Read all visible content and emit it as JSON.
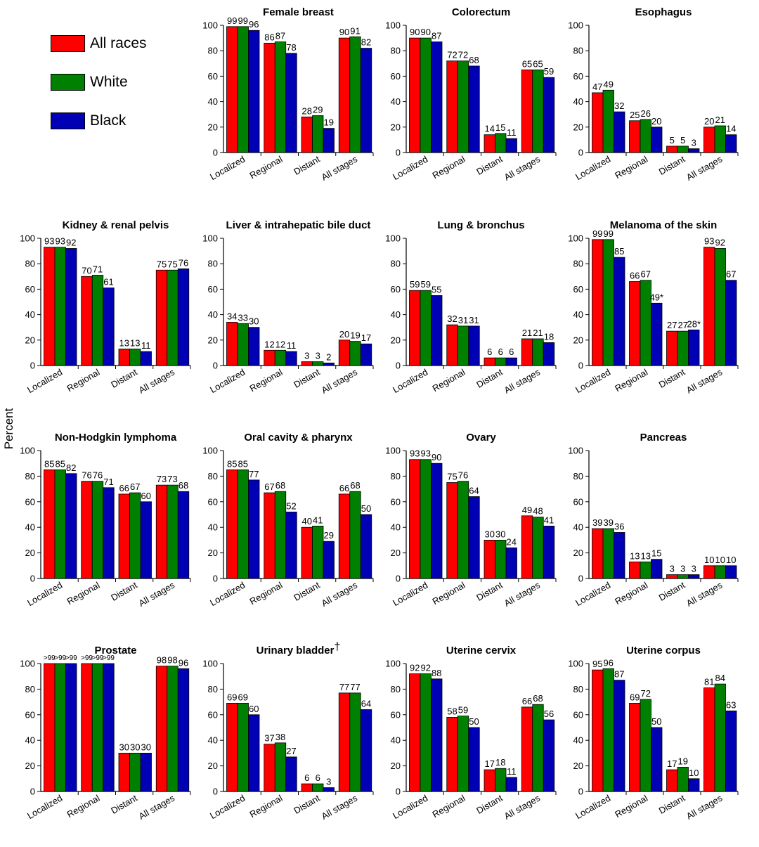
{
  "colors": {
    "all_races": "#ff0000",
    "white": "#008000",
    "black": "#0000b4"
  },
  "legend": {
    "all_races": "All races",
    "white": "White",
    "black": "Black"
  },
  "ylabel": "Percent",
  "chart_data": [
    {
      "type": "bar",
      "title": "Female breast",
      "categories": [
        "Localized",
        "Regional",
        "Distant",
        "All stages"
      ],
      "ylim": [
        0,
        100
      ],
      "yticks": [
        "0",
        "20",
        "40",
        "60",
        "80",
        "100"
      ],
      "series": [
        {
          "name": "All races",
          "values": [
            99,
            86,
            28,
            90
          ],
          "labels": [
            "99",
            "86",
            "28",
            "90"
          ]
        },
        {
          "name": "White",
          "values": [
            99,
            87,
            29,
            91
          ],
          "labels": [
            "99",
            "87",
            "29",
            "91"
          ]
        },
        {
          "name": "Black",
          "values": [
            96,
            78,
            19,
            82
          ],
          "labels": [
            "96",
            "78",
            "19",
            "82"
          ]
        }
      ]
    },
    {
      "type": "bar",
      "title": "Colorectum",
      "categories": [
        "Localized",
        "Regional",
        "Distant",
        "All stages"
      ],
      "ylim": [
        0,
        100
      ],
      "yticks": [
        "0",
        "20",
        "40",
        "60",
        "80",
        "100"
      ],
      "series": [
        {
          "name": "All races",
          "values": [
            90,
            72,
            14,
            65
          ],
          "labels": [
            "90",
            "72",
            "14",
            "65"
          ]
        },
        {
          "name": "White",
          "values": [
            90,
            72,
            15,
            65
          ],
          "labels": [
            "90",
            "72",
            "15",
            "65"
          ]
        },
        {
          "name": "Black",
          "values": [
            87,
            68,
            11,
            59
          ],
          "labels": [
            "87",
            "68",
            "11",
            "59"
          ]
        }
      ]
    },
    {
      "type": "bar",
      "title": "Esophagus",
      "categories": [
        "Localized",
        "Regional",
        "Distant",
        "All stages"
      ],
      "ylim": [
        0,
        100
      ],
      "yticks": [
        "0",
        "20",
        "40",
        "60",
        "80",
        "100"
      ],
      "series": [
        {
          "name": "All races",
          "values": [
            47,
            25,
            5,
            20
          ],
          "labels": [
            "47",
            "25",
            "5",
            "20"
          ]
        },
        {
          "name": "White",
          "values": [
            49,
            26,
            5,
            21
          ],
          "labels": [
            "49",
            "26",
            "5",
            "21"
          ]
        },
        {
          "name": "Black",
          "values": [
            32,
            20,
            3,
            14
          ],
          "labels": [
            "32",
            "20",
            "3",
            "14"
          ]
        }
      ]
    },
    {
      "type": "bar",
      "title": "Kidney & renal pelvis",
      "categories": [
        "Localized",
        "Regional",
        "Distant",
        "All stages"
      ],
      "ylim": [
        0,
        100
      ],
      "yticks": [
        "0",
        "20",
        "40",
        "60",
        "80",
        "100"
      ],
      "series": [
        {
          "name": "All races",
          "values": [
            93,
            70,
            13,
            75
          ],
          "labels": [
            "93",
            "70",
            "13",
            "75"
          ]
        },
        {
          "name": "White",
          "values": [
            93,
            71,
            13,
            75
          ],
          "labels": [
            "93",
            "71",
            "13",
            "75"
          ]
        },
        {
          "name": "Black",
          "values": [
            92,
            61,
            11,
            76
          ],
          "labels": [
            "92",
            "61",
            "11",
            "76"
          ]
        }
      ]
    },
    {
      "type": "bar",
      "title": "Liver & intrahepatic bile duct",
      "categories": [
        "Localized",
        "Regional",
        "Distant",
        "All stages"
      ],
      "ylim": [
        0,
        100
      ],
      "yticks": [
        "0",
        "20",
        "40",
        "60",
        "80",
        "100"
      ],
      "series": [
        {
          "name": "All races",
          "values": [
            34,
            12,
            3,
            20
          ],
          "labels": [
            "34",
            "12",
            "3",
            "20"
          ]
        },
        {
          "name": "White",
          "values": [
            33,
            12,
            3,
            19
          ],
          "labels": [
            "33",
            "12",
            "3",
            "19"
          ]
        },
        {
          "name": "Black",
          "values": [
            30,
            11,
            2,
            17
          ],
          "labels": [
            "30",
            "11",
            "2",
            "17"
          ]
        }
      ]
    },
    {
      "type": "bar",
      "title": "Lung & bronchus",
      "categories": [
        "Localized",
        "Regional",
        "Distant",
        "All stages"
      ],
      "ylim": [
        0,
        100
      ],
      "yticks": [
        "0",
        "20",
        "40",
        "60",
        "80",
        "100"
      ],
      "series": [
        {
          "name": "All races",
          "values": [
            59,
            32,
            6,
            21
          ],
          "labels": [
            "59",
            "32",
            "6",
            "21"
          ]
        },
        {
          "name": "White",
          "values": [
            59,
            31,
            6,
            21
          ],
          "labels": [
            "59",
            "31",
            "6",
            "21"
          ]
        },
        {
          "name": "Black",
          "values": [
            55,
            31,
            6,
            18
          ],
          "labels": [
            "55",
            "31",
            "6",
            "18"
          ]
        }
      ]
    },
    {
      "type": "bar",
      "title": "Melanoma of the skin",
      "categories": [
        "Localized",
        "Regional",
        "Distant",
        "All stages"
      ],
      "ylim": [
        0,
        100
      ],
      "yticks": [
        "0",
        "20",
        "40",
        "60",
        "80",
        "100"
      ],
      "series": [
        {
          "name": "All races",
          "values": [
            99,
            66,
            27,
            93
          ],
          "labels": [
            "99",
            "66",
            "27",
            "93"
          ]
        },
        {
          "name": "White",
          "values": [
            99,
            67,
            27,
            92
          ],
          "labels": [
            "99",
            "67",
            "27",
            "92"
          ]
        },
        {
          "name": "Black",
          "values": [
            85,
            49,
            28,
            67
          ],
          "labels": [
            "85",
            "49*",
            "28*",
            "67"
          ]
        }
      ]
    },
    {
      "type": "bar",
      "title": "Non-Hodgkin lymphoma",
      "categories": [
        "Localized",
        "Regional",
        "Distant",
        "All stages"
      ],
      "ylim": [
        0,
        100
      ],
      "yticks": [
        "0",
        "20",
        "40",
        "60",
        "80",
        "100"
      ],
      "series": [
        {
          "name": "All races",
          "values": [
            85,
            76,
            66,
            73
          ],
          "labels": [
            "85",
            "76",
            "66",
            "73"
          ]
        },
        {
          "name": "White",
          "values": [
            85,
            76,
            67,
            73
          ],
          "labels": [
            "85",
            "76",
            "67",
            "73"
          ]
        },
        {
          "name": "Black",
          "values": [
            82,
            71,
            60,
            68
          ],
          "labels": [
            "82",
            "71",
            "60",
            "68"
          ]
        }
      ]
    },
    {
      "type": "bar",
      "title": "Oral cavity & pharynx",
      "categories": [
        "Localized",
        "Regional",
        "Distant",
        "All stages"
      ],
      "ylim": [
        0,
        100
      ],
      "yticks": [
        "0",
        "20",
        "40",
        "60",
        "80",
        "100"
      ],
      "series": [
        {
          "name": "All races",
          "values": [
            85,
            67,
            40,
            66
          ],
          "labels": [
            "85",
            "67",
            "40",
            "66"
          ]
        },
        {
          "name": "White",
          "values": [
            85,
            68,
            41,
            68
          ],
          "labels": [
            "85",
            "68",
            "41",
            "68"
          ]
        },
        {
          "name": "Black",
          "values": [
            77,
            52,
            29,
            50
          ],
          "labels": [
            "77",
            "52",
            "29",
            "50"
          ]
        }
      ]
    },
    {
      "type": "bar",
      "title": "Ovary",
      "categories": [
        "Localized",
        "Regional",
        "Distant",
        "All stages"
      ],
      "ylim": [
        0,
        100
      ],
      "yticks": [
        "0",
        "20",
        "40",
        "60",
        "80",
        "100"
      ],
      "series": [
        {
          "name": "All races",
          "values": [
            93,
            75,
            30,
            49
          ],
          "labels": [
            "93",
            "75",
            "30",
            "49"
          ]
        },
        {
          "name": "White",
          "values": [
            93,
            76,
            30,
            48
          ],
          "labels": [
            "93",
            "76",
            "30",
            "48"
          ]
        },
        {
          "name": "Black",
          "values": [
            90,
            64,
            24,
            41
          ],
          "labels": [
            "90",
            "64",
            "24",
            "41"
          ]
        }
      ]
    },
    {
      "type": "bar",
      "title": "Pancreas",
      "categories": [
        "Localized",
        "Regional",
        "Distant",
        "All stages"
      ],
      "ylim": [
        0,
        100
      ],
      "yticks": [
        "0",
        "20",
        "40",
        "60",
        "80",
        "100"
      ],
      "series": [
        {
          "name": "All races",
          "values": [
            39,
            13,
            3,
            10
          ],
          "labels": [
            "39",
            "13",
            "3",
            "10"
          ]
        },
        {
          "name": "White",
          "values": [
            39,
            13,
            3,
            10
          ],
          "labels": [
            "39",
            "13",
            "3",
            "10"
          ]
        },
        {
          "name": "Black",
          "values": [
            36,
            15,
            3,
            10
          ],
          "labels": [
            "36",
            "15",
            "3",
            "10"
          ]
        }
      ]
    },
    {
      "type": "bar",
      "title": "Prostate",
      "categories": [
        "Localized",
        "Regional",
        "Distant",
        "All stages"
      ],
      "ylim": [
        0,
        100
      ],
      "yticks": [
        "0",
        "20",
        "40",
        "60",
        "80",
        "100"
      ],
      "series": [
        {
          "name": "All races",
          "values": [
            100,
            100,
            30,
            98
          ],
          "labels": [
            ">99",
            ">99",
            "30",
            "98"
          ]
        },
        {
          "name": "White",
          "values": [
            100,
            100,
            30,
            98
          ],
          "labels": [
            ">99",
            ">99",
            "30",
            "98"
          ]
        },
        {
          "name": "Black",
          "values": [
            100,
            100,
            30,
            96
          ],
          "labels": [
            ">99",
            ">99",
            "30",
            "96"
          ]
        }
      ]
    },
    {
      "type": "bar",
      "title": "Urinary bladder",
      "title_mark": "†",
      "categories": [
        "Localized",
        "Regional",
        "Distant",
        "All stages"
      ],
      "ylim": [
        0,
        100
      ],
      "yticks": [
        "0",
        "20",
        "40",
        "60",
        "80",
        "100"
      ],
      "series": [
        {
          "name": "All races",
          "values": [
            69,
            37,
            6,
            77
          ],
          "labels": [
            "69",
            "37",
            "6",
            "77"
          ]
        },
        {
          "name": "White",
          "values": [
            69,
            38,
            6,
            77
          ],
          "labels": [
            "69",
            "38",
            "6",
            "77"
          ]
        },
        {
          "name": "Black",
          "values": [
            60,
            27,
            3,
            64
          ],
          "labels": [
            "60",
            "27",
            "3",
            "64"
          ]
        }
      ]
    },
    {
      "type": "bar",
      "title": "Uterine cervix",
      "categories": [
        "Localized",
        "Regional",
        "Distant",
        "All stages"
      ],
      "ylim": [
        0,
        100
      ],
      "yticks": [
        "0",
        "20",
        "40",
        "60",
        "80",
        "100"
      ],
      "series": [
        {
          "name": "All races",
          "values": [
            92,
            58,
            17,
            66
          ],
          "labels": [
            "92",
            "58",
            "17",
            "66"
          ]
        },
        {
          "name": "White",
          "values": [
            92,
            59,
            18,
            68
          ],
          "labels": [
            "92",
            "59",
            "18",
            "68"
          ]
        },
        {
          "name": "Black",
          "values": [
            88,
            50,
            11,
            56
          ],
          "labels": [
            "88",
            "50",
            "11",
            "56"
          ]
        }
      ]
    },
    {
      "type": "bar",
      "title": "Uterine corpus",
      "categories": [
        "Localized",
        "Regional",
        "Distant",
        "All stages"
      ],
      "ylim": [
        0,
        100
      ],
      "yticks": [
        "0",
        "20",
        "40",
        "60",
        "80",
        "100"
      ],
      "series": [
        {
          "name": "All races",
          "values": [
            95,
            69,
            17,
            81
          ],
          "labels": [
            "95",
            "69",
            "17",
            "81"
          ]
        },
        {
          "name": "White",
          "values": [
            96,
            72,
            19,
            84
          ],
          "labels": [
            "96",
            "72",
            "19",
            "84"
          ]
        },
        {
          "name": "Black",
          "values": [
            87,
            50,
            10,
            63
          ],
          "labels": [
            "87",
            "50",
            "10",
            "63"
          ]
        }
      ]
    }
  ]
}
